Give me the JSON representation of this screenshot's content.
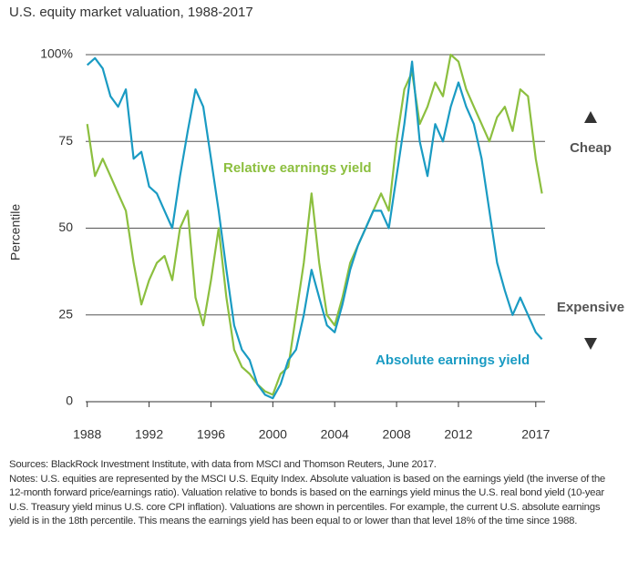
{
  "chart_data": {
    "type": "line",
    "title": "U.S. equity market valuation, 1988-2017",
    "y_label": "Percentile",
    "annotations": {
      "up": "Cheap",
      "down": "Expensive"
    },
    "x": [
      1988,
      1988.5,
      1989,
      1989.5,
      1990,
      1990.5,
      1991,
      1991.5,
      1992,
      1992.5,
      1993,
      1993.5,
      1994,
      1994.5,
      1995,
      1995.5,
      1996,
      1996.5,
      1997,
      1997.5,
      1998,
      1998.5,
      1999,
      1999.5,
      2000,
      2000.5,
      2001,
      2001.5,
      2002,
      2002.5,
      2003,
      2003.5,
      2004,
      2004.5,
      2005,
      2005.5,
      2006,
      2006.5,
      2007,
      2007.5,
      2008,
      2008.5,
      2009,
      2009.5,
      2010,
      2010.5,
      2011,
      2011.5,
      2012,
      2012.5,
      2013,
      2013.5,
      2014,
      2014.5,
      2015,
      2015.5,
      2016,
      2016.5,
      2017,
      2017.4
    ],
    "series": [
      {
        "name": "Relative earnings yield",
        "color": "#8cbf3f",
        "values": [
          80,
          65,
          70,
          65,
          60,
          55,
          40,
          28,
          35,
          40,
          42,
          35,
          50,
          55,
          30,
          22,
          35,
          50,
          30,
          15,
          10,
          8,
          5,
          3,
          2,
          8,
          10,
          25,
          40,
          60,
          40,
          25,
          22,
          30,
          40,
          45,
          50,
          55,
          60,
          55,
          75,
          90,
          95,
          80,
          85,
          92,
          88,
          100,
          98,
          90,
          85,
          80,
          75,
          82,
          85,
          78,
          90,
          88,
          70,
          60
        ]
      },
      {
        "name": "Absolute earnings yield",
        "color": "#1a9bc3",
        "values": [
          97,
          99,
          96,
          88,
          85,
          90,
          70,
          72,
          62,
          60,
          55,
          50,
          65,
          78,
          90,
          85,
          70,
          55,
          38,
          22,
          15,
          12,
          5,
          2,
          1,
          5,
          12,
          15,
          25,
          38,
          30,
          22,
          20,
          28,
          38,
          45,
          50,
          55,
          55,
          50,
          65,
          80,
          98,
          75,
          65,
          80,
          75,
          85,
          92,
          85,
          80,
          70,
          55,
          40,
          32,
          25,
          30,
          25,
          20,
          18
        ]
      }
    ],
    "xlim": [
      1987.9,
      2017.6
    ],
    "xticks": [
      1988,
      1992,
      1996,
      2000,
      2004,
      2008,
      2012,
      2017
    ],
    "ylim": [
      0,
      100
    ],
    "yticks": [
      0,
      25,
      50,
      75,
      {
        "value": 100,
        "label": "100%"
      }
    ],
    "grid": true,
    "sources": "Sources: BlackRock Investment Institute, with data from MSCI and Thomson Reuters, June 2017.",
    "notes": "Notes: U.S. equities are represented by the MSCI U.S. Equity Index. Absolute valuation is based on the earnings yield (the inverse of the 12-month forward price/earnings ratio). Valuation relative to bonds is based on the earnings yield minus the U.S. real bond yield (10-year U.S. Treasury yield minus U.S. core CPI inflation). Valuations are shown in percentiles. For example, the current U.S. absolute earnings yield is in the 18th percentile. This means the earnings yield has been equal to or lower than that level 18% of the time since 1988."
  }
}
